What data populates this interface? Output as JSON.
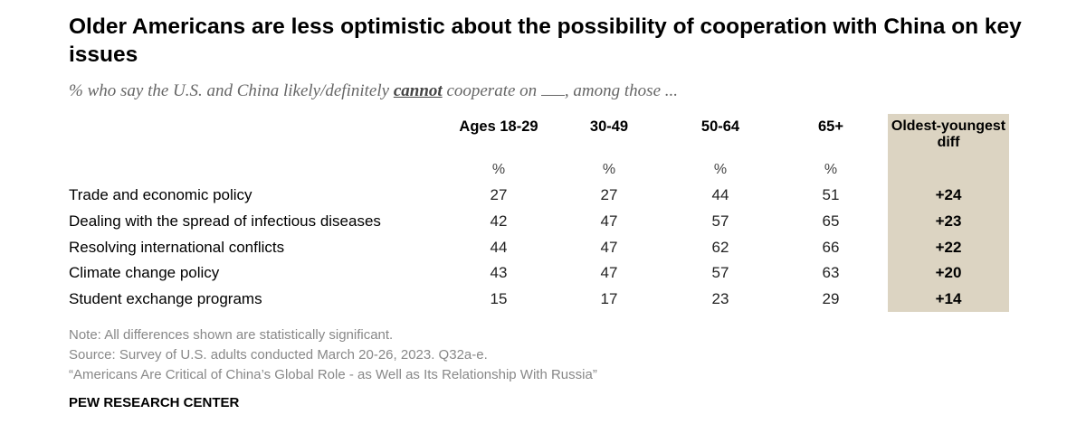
{
  "title": "Older Americans are less optimistic about the possibility of cooperation with China on key issues",
  "subtitle": {
    "before": "% who say the U.S. and China likely/definitely ",
    "emphasis": "cannot",
    "after": " cooperate on",
    "end": ", among those ..."
  },
  "chart_data": {
    "type": "table",
    "columns": [
      "Ages 18-29",
      "30-49",
      "50-64",
      "65+",
      "Oldest-youngest diff"
    ],
    "unit_row": [
      "%",
      "%",
      "%",
      "%"
    ],
    "rows": [
      {
        "label": "Trade and economic policy",
        "values": [
          "27",
          "27",
          "44",
          "51"
        ],
        "diff": "+24"
      },
      {
        "label": "Dealing with the spread of infectious diseases",
        "values": [
          "42",
          "47",
          "57",
          "65"
        ],
        "diff": "+23"
      },
      {
        "label": "Resolving international conflicts",
        "values": [
          "44",
          "47",
          "62",
          "66"
        ],
        "diff": "+22"
      },
      {
        "label": "Climate change policy",
        "values": [
          "43",
          "47",
          "57",
          "63"
        ],
        "diff": "+20"
      },
      {
        "label": "Student exchange programs",
        "values": [
          "15",
          "17",
          "23",
          "29"
        ],
        "diff": "+14"
      }
    ]
  },
  "colors": {
    "diff_panel": "#dcd4c2",
    "note_text": "#888888"
  },
  "notes": [
    "Note: All differences shown are statistically significant.",
    "Source: Survey of U.S. adults conducted March 20-26, 2023. Q32a-e.",
    "“Americans Are Critical of China’s Global Role - as Well as Its Relationship With Russia”"
  ],
  "brand": "PEW RESEARCH CENTER"
}
